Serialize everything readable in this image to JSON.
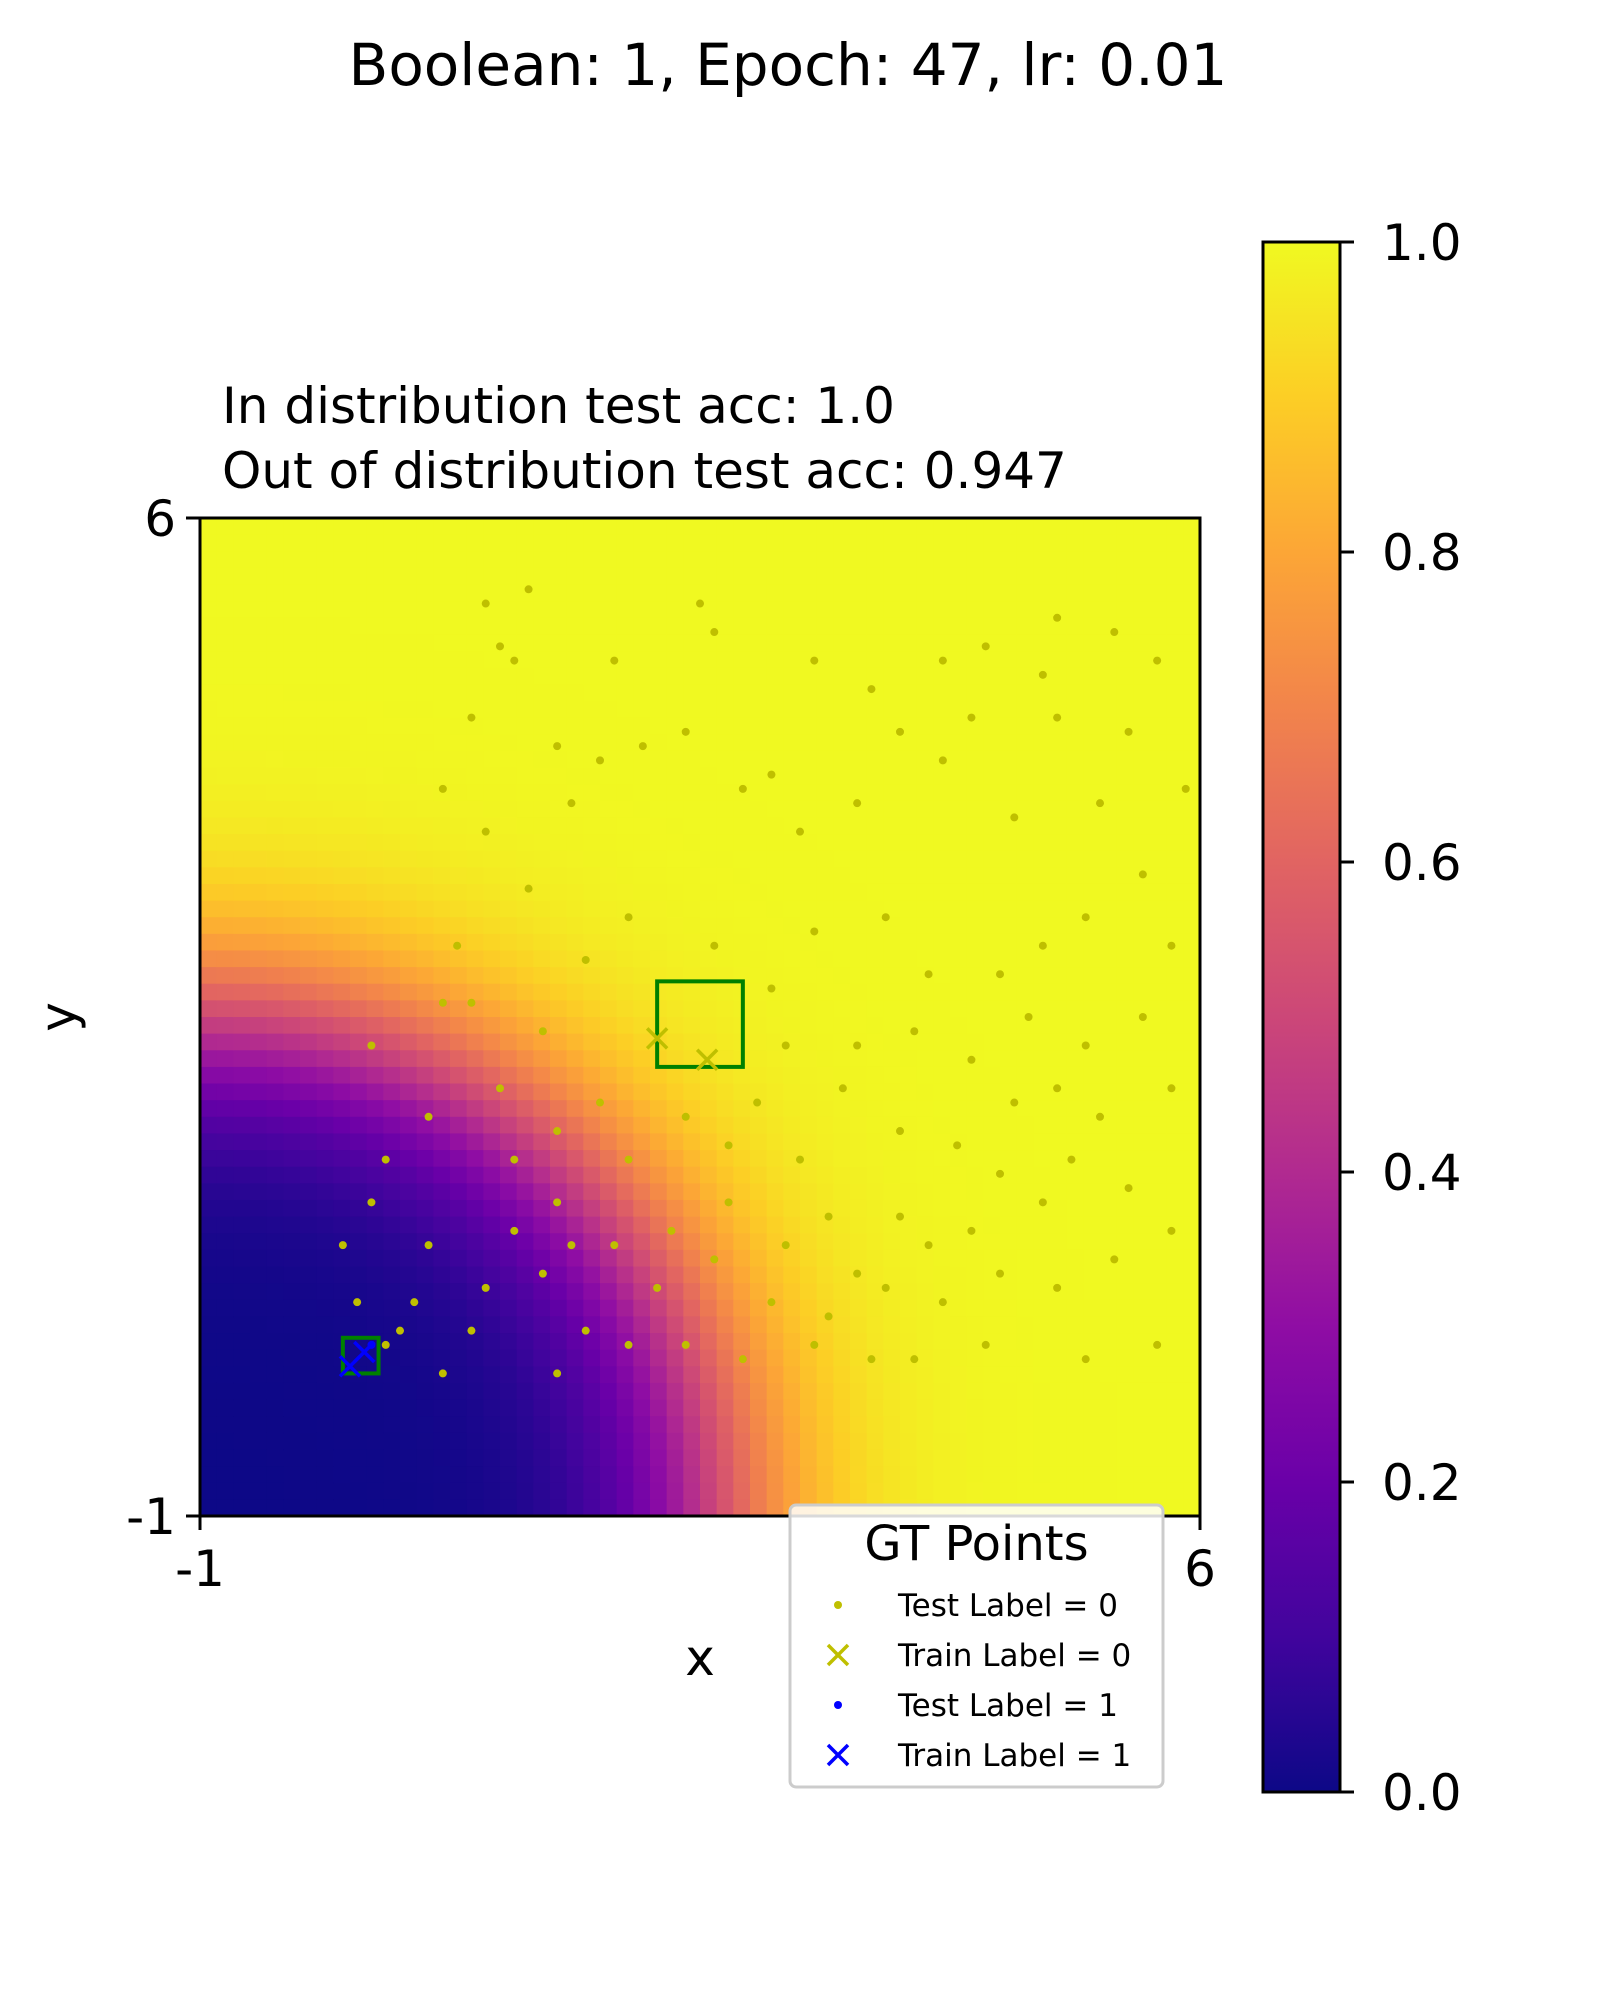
{
  "chart_data": {
    "type": "scatter",
    "title": "Boolean: 1, Epoch: 47, lr: 0.01",
    "subtitle_lines": [
      "In distribution test acc: 1.0",
      "Out of distribution test acc: 0.947"
    ],
    "xlabel": "x",
    "ylabel": "y",
    "xlim": [
      -1,
      6
    ],
    "ylim": [
      -1,
      6
    ],
    "xticks": [
      "-1",
      "6"
    ],
    "yticks": [
      "-1",
      "6"
    ],
    "background": "heatmap of predicted probability (plasma colormap), low near (-1,-1), high elsewhere",
    "colorbar": {
      "range": [
        0,
        1
      ],
      "ticks": [
        "0.0",
        "0.2",
        "0.4",
        "0.6",
        "0.8",
        "1.0"
      ],
      "colormap": "plasma"
    },
    "boxes": [
      {
        "name": "train-box-0",
        "x0": 2.2,
        "x1": 2.8,
        "y0": 2.15,
        "y1": 2.75,
        "color": "#008000"
      },
      {
        "name": "train-box-1",
        "x0": 0.0,
        "x1": 0.25,
        "y0": 0.0,
        "y1": 0.25,
        "color": "#008000"
      }
    ],
    "legend": {
      "title": "GT Points",
      "position": "bottom-right",
      "entries": [
        {
          "label": "Test Label = 0",
          "marker": "dot",
          "color": "#bfbf00"
        },
        {
          "label": "Train Label = 0",
          "marker": "x",
          "color": "#bfbf00"
        },
        {
          "label": "Test Label = 1",
          "marker": "dot",
          "color": "#0000ff"
        },
        {
          "label": "Train Label = 1",
          "marker": "x",
          "color": "#0000ff"
        }
      ]
    },
    "series": [
      {
        "label_class": 0,
        "kind": "test",
        "color": "#bfbf00",
        "marker": "dot",
        "points": [
          [
            1.0,
            5.4
          ],
          [
            1.3,
            5.5
          ],
          [
            1.1,
            5.1
          ],
          [
            1.2,
            5.0
          ],
          [
            0.9,
            4.6
          ],
          [
            1.5,
            4.4
          ],
          [
            1.6,
            4.0
          ],
          [
            1.8,
            4.3
          ],
          [
            2.1,
            4.4
          ],
          [
            2.5,
            5.4
          ],
          [
            2.4,
            4.5
          ],
          [
            2.8,
            4.1
          ],
          [
            3.0,
            4.2
          ],
          [
            3.2,
            3.8
          ],
          [
            3.6,
            4.0
          ],
          [
            3.9,
            4.5
          ],
          [
            4.2,
            5.0
          ],
          [
            4.5,
            5.1
          ],
          [
            5.0,
            5.3
          ],
          [
            5.4,
            5.2
          ],
          [
            5.7,
            5.0
          ],
          [
            5.0,
            4.6
          ],
          [
            4.2,
            4.3
          ],
          [
            4.7,
            3.9
          ],
          [
            5.3,
            4.0
          ],
          [
            5.6,
            3.5
          ],
          [
            5.8,
            3.0
          ],
          [
            5.2,
            3.2
          ],
          [
            4.9,
            3.0
          ],
          [
            4.6,
            2.8
          ],
          [
            4.1,
            2.8
          ],
          [
            3.8,
            3.2
          ],
          [
            3.3,
            3.1
          ],
          [
            3.0,
            2.7
          ],
          [
            3.1,
            2.3
          ],
          [
            3.5,
            2.0
          ],
          [
            3.9,
            1.7
          ],
          [
            4.3,
            1.6
          ],
          [
            4.7,
            1.9
          ],
          [
            5.1,
            1.5
          ],
          [
            5.5,
            1.3
          ],
          [
            5.8,
            1.0
          ],
          [
            5.4,
            0.8
          ],
          [
            5.0,
            0.6
          ],
          [
            4.6,
            0.7
          ],
          [
            4.2,
            0.5
          ],
          [
            3.8,
            0.6
          ],
          [
            3.4,
            0.4
          ],
          [
            3.0,
            0.5
          ],
          [
            2.6,
            0.8
          ],
          [
            2.2,
            0.6
          ],
          [
            1.9,
            0.9
          ],
          [
            1.5,
            1.2
          ],
          [
            1.2,
            1.5
          ],
          [
            1.5,
            1.7
          ],
          [
            1.1,
            2.0
          ],
          [
            0.9,
            2.6
          ],
          [
            0.8,
            3.0
          ],
          [
            1.4,
            2.4
          ],
          [
            1.7,
            2.9
          ],
          [
            2.0,
            3.2
          ],
          [
            2.6,
            3.0
          ],
          [
            2.0,
            1.5
          ],
          [
            1.8,
            1.9
          ],
          [
            2.4,
            1.8
          ],
          [
            2.7,
            1.2
          ],
          [
            2.3,
            1.0
          ],
          [
            1.6,
            0.9
          ],
          [
            1.4,
            0.7
          ],
          [
            1.2,
            1.0
          ],
          [
            1.0,
            0.6
          ],
          [
            0.9,
            0.3
          ],
          [
            0.5,
            0.5
          ],
          [
            0.4,
            0.3
          ],
          [
            0.3,
            0.2
          ],
          [
            0.6,
            0.9
          ],
          [
            0.2,
            1.2
          ],
          [
            1.7,
            0.3
          ],
          [
            2.4,
            0.2
          ],
          [
            2.8,
            0.1
          ],
          [
            3.3,
            0.2
          ],
          [
            4.0,
            0.1
          ],
          [
            5.7,
            0.2
          ],
          [
            5.2,
            0.1
          ],
          [
            4.5,
            0.2
          ],
          [
            3.7,
            0.1
          ],
          [
            2.0,
            0.2
          ],
          [
            1.5,
            0.0
          ],
          [
            0.7,
            0.0
          ],
          [
            0.1,
            0.5
          ],
          [
            0.0,
            0.9
          ],
          [
            0.3,
            1.5
          ],
          [
            0.6,
            1.8
          ],
          [
            0.2,
            2.3
          ],
          [
            0.7,
            2.6
          ],
          [
            1.3,
            3.4
          ],
          [
            1.0,
            3.8
          ],
          [
            0.7,
            4.1
          ],
          [
            1.9,
            5.0
          ],
          [
            2.6,
            5.2
          ],
          [
            3.3,
            5.0
          ],
          [
            3.7,
            4.8
          ],
          [
            4.4,
            4.6
          ],
          [
            4.9,
            4.9
          ],
          [
            5.5,
            4.5
          ],
          [
            5.9,
            4.1
          ],
          [
            5.6,
            2.5
          ],
          [
            5.2,
            2.3
          ],
          [
            4.8,
            2.5
          ],
          [
            4.4,
            2.2
          ],
          [
            4.0,
            2.4
          ],
          [
            3.6,
            2.3
          ],
          [
            3.2,
            1.5
          ],
          [
            2.9,
            1.9
          ],
          [
            3.4,
            1.1
          ],
          [
            3.9,
            1.1
          ],
          [
            4.4,
            1.0
          ],
          [
            4.9,
            1.2
          ],
          [
            5.3,
            1.8
          ],
          [
            5.8,
            2.0
          ],
          [
            5.0,
            2.0
          ],
          [
            4.6,
            1.4
          ],
          [
            4.1,
            0.9
          ],
          [
            3.6,
            0.7
          ],
          [
            3.1,
            0.9
          ],
          [
            2.7,
            1.6
          ]
        ]
      },
      {
        "label_class": 0,
        "kind": "train",
        "color": "#bfbf00",
        "marker": "x",
        "points": [
          [
            2.2,
            2.35
          ],
          [
            2.55,
            2.2
          ]
        ]
      },
      {
        "label_class": 1,
        "kind": "test",
        "color": "#0000ff",
        "marker": "dot",
        "points": [
          [
            0.2,
            0.2
          ]
        ]
      },
      {
        "label_class": 1,
        "kind": "train",
        "color": "#0000ff",
        "marker": "x",
        "points": [
          [
            0.05,
            0.05
          ],
          [
            0.15,
            0.15
          ]
        ]
      }
    ]
  }
}
